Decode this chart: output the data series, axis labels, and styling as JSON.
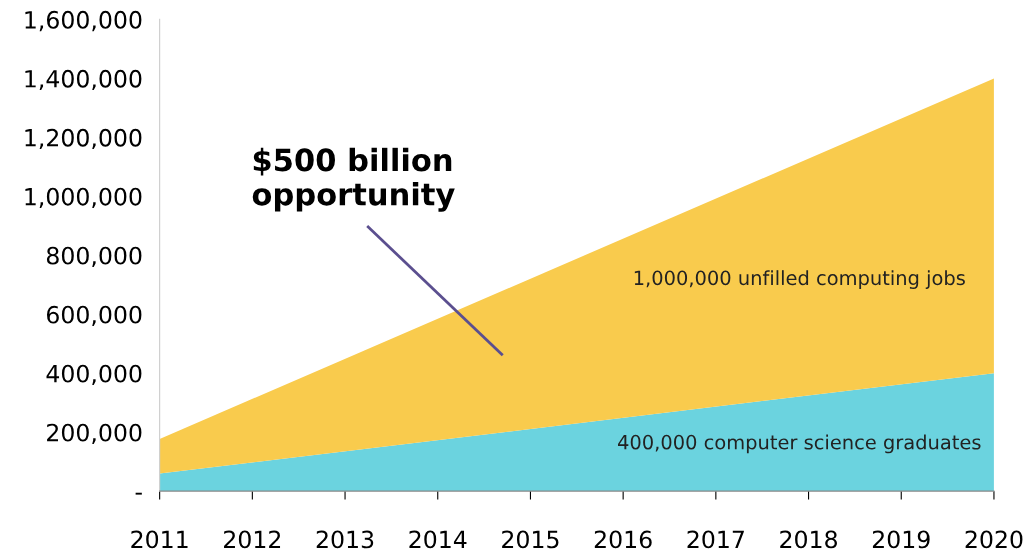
{
  "chart_data": {
    "type": "area",
    "stacked": true,
    "x": [
      2011,
      2020
    ],
    "series": [
      {
        "name": "400,000 computer science graduates",
        "color": "#6bd3df",
        "values": [
          60000,
          400000
        ]
      },
      {
        "name": "1,000,000 unfilled computing jobs",
        "color": "#f9cb4d",
        "values": [
          117000,
          1000000
        ]
      }
    ],
    "xlim": [
      2011,
      2020
    ],
    "xticks": [
      2011,
      2012,
      2013,
      2014,
      2015,
      2016,
      2017,
      2018,
      2019,
      2020
    ],
    "ylim": [
      0,
      1600000
    ],
    "yticks": [
      {
        "value": 0,
        "label": "-"
      },
      {
        "value": 200000,
        "label": "200,000"
      },
      {
        "value": 400000,
        "label": "400,000"
      },
      {
        "value": 600000,
        "label": "600,000"
      },
      {
        "value": 800000,
        "label": "800,000"
      },
      {
        "value": 1000000,
        "label": "1,000,000"
      },
      {
        "value": 1200000,
        "label": "1,200,000"
      },
      {
        "value": 1400000,
        "label": "1,400,000"
      },
      {
        "value": 1600000,
        "label": "1,600,000"
      }
    ],
    "annotations": [
      "$500 billion\nopportunity"
    ],
    "grid": false,
    "legend": false
  }
}
